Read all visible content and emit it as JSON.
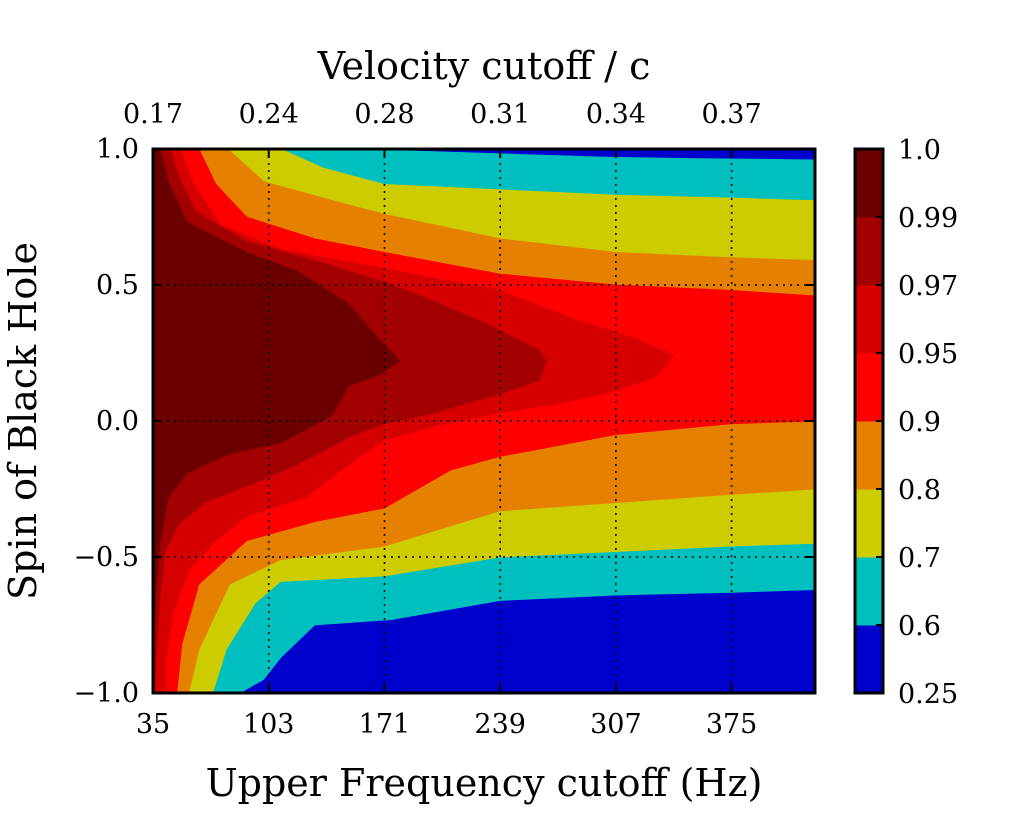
{
  "chart_data": {
    "type": "contourf",
    "title": "",
    "xlabel": "Upper Frequency cutoff (Hz)",
    "ylabel": "Spin of Black Hole",
    "x2label": "Velocity cutoff / c",
    "xlim": [
      35,
      424
    ],
    "ylim": [
      -1.0,
      1.0
    ],
    "x_ticks": [
      35,
      103,
      171,
      239,
      307,
      375
    ],
    "x_tick_labels": [
      "35",
      "103",
      "171",
      "239",
      "307",
      "375"
    ],
    "y_ticks": [
      -1.0,
      -0.5,
      0.0,
      0.5,
      1.0
    ],
    "y_tick_labels": [
      "−1.0",
      "−0.5",
      "0.0",
      "0.5",
      "1.0"
    ],
    "x2_ticks": [
      35,
      103,
      171,
      239,
      307,
      375
    ],
    "x2_tick_labels": [
      "0.17",
      "0.24",
      "0.28",
      "0.31",
      "0.34",
      "0.37"
    ],
    "grid": true,
    "grid_style": "dotted",
    "colorbar": {
      "ticks": [
        "0.25",
        "0.6",
        "0.7",
        "0.8",
        "0.9",
        "0.95",
        "0.97",
        "0.99",
        "1.0"
      ],
      "levels": [
        0.25,
        0.6,
        0.7,
        0.8,
        0.9,
        0.95,
        0.97,
        0.99,
        1.0
      ]
    },
    "level_colors": [
      "#0000cc",
      "#00bfbf",
      "#cccc00",
      "#e68000",
      "#ff0000",
      "#d60000",
      "#a30000",
      "#6b0000"
    ],
    "contours": [
      {
        "level": 0.6,
        "upper": [
          [
            35,
            1.0
          ],
          [
            144,
            1.0
          ],
          [
            200,
            0.99
          ],
          [
            250,
            0.98
          ],
          [
            300,
            0.97
          ],
          [
            350,
            0.965
          ],
          [
            424,
            0.96
          ]
        ],
        "lower": [
          [
            35,
            -1.0
          ],
          [
            86,
            -1.0
          ],
          [
            100,
            -0.95
          ],
          [
            110,
            -0.87
          ],
          [
            130,
            -0.75
          ],
          [
            175,
            -0.73
          ],
          [
            239,
            -0.66
          ],
          [
            307,
            -0.64
          ],
          [
            375,
            -0.63
          ],
          [
            424,
            -0.62
          ]
        ]
      },
      {
        "level": 0.7,
        "upper": [
          [
            35,
            1.0
          ],
          [
            110,
            1.0
          ],
          [
            135,
            0.93
          ],
          [
            171,
            0.87
          ],
          [
            239,
            0.85
          ],
          [
            307,
            0.83
          ],
          [
            375,
            0.82
          ],
          [
            424,
            0.81
          ]
        ],
        "lower": [
          [
            35,
            -1.0
          ],
          [
            70,
            -1.0
          ],
          [
            78,
            -0.84
          ],
          [
            95,
            -0.67
          ],
          [
            110,
            -0.59
          ],
          [
            171,
            -0.57
          ],
          [
            239,
            -0.5
          ],
          [
            307,
            -0.48
          ],
          [
            375,
            -0.46
          ],
          [
            424,
            -0.45
          ]
        ]
      },
      {
        "level": 0.8,
        "upper": [
          [
            35,
            1.0
          ],
          [
            79,
            1.0
          ],
          [
            100,
            0.88
          ],
          [
            135,
            0.82
          ],
          [
            171,
            0.76
          ],
          [
            239,
            0.67
          ],
          [
            307,
            0.62
          ],
          [
            375,
            0.6
          ],
          [
            424,
            0.59
          ]
        ],
        "lower": [
          [
            35,
            -1.0
          ],
          [
            56,
            -1.0
          ],
          [
            62,
            -0.84
          ],
          [
            80,
            -0.6
          ],
          [
            110,
            -0.51
          ],
          [
            171,
            -0.46
          ],
          [
            239,
            -0.33
          ],
          [
            307,
            -0.3
          ],
          [
            375,
            -0.27
          ],
          [
            424,
            -0.25
          ]
        ]
      },
      {
        "level": 0.9,
        "upper": [
          [
            35,
            1.0
          ],
          [
            62,
            1.0
          ],
          [
            72,
            0.87
          ],
          [
            90,
            0.75
          ],
          [
            130,
            0.67
          ],
          [
            171,
            0.62
          ],
          [
            239,
            0.54
          ],
          [
            307,
            0.5
          ],
          [
            375,
            0.48
          ],
          [
            424,
            0.46
          ]
        ],
        "lower": [
          [
            35,
            -1.0
          ],
          [
            49,
            -1.0
          ],
          [
            52,
            -0.82
          ],
          [
            62,
            -0.6
          ],
          [
            90,
            -0.44
          ],
          [
            130,
            -0.37
          ],
          [
            171,
            -0.32
          ],
          [
            210,
            -0.18
          ],
          [
            239,
            -0.13
          ],
          [
            307,
            -0.05
          ],
          [
            375,
            -0.01
          ],
          [
            424,
            0.0
          ]
        ]
      },
      {
        "level": 0.95,
        "upper": [
          [
            35,
            1.0
          ],
          [
            51,
            1.0
          ],
          [
            58,
            0.88
          ],
          [
            75,
            0.72
          ],
          [
            110,
            0.63
          ],
          [
            171,
            0.56
          ],
          [
            239,
            0.48
          ],
          [
            280,
            0.38
          ],
          [
            320,
            0.3
          ],
          [
            341,
            0.24
          ],
          [
            330,
            0.16
          ],
          [
            300,
            0.1
          ],
          [
            270,
            0.06
          ],
          [
            239,
            0.03
          ],
          [
            200,
            -0.02
          ],
          [
            171,
            -0.07
          ],
          [
            150,
            -0.16
          ],
          [
            125,
            -0.28
          ],
          [
            90,
            -0.35
          ],
          [
            70,
            -0.45
          ],
          [
            56,
            -0.55
          ],
          [
            47,
            -0.7
          ],
          [
            42,
            -0.9
          ],
          [
            43,
            -1.0
          ],
          [
            35,
            -1.0
          ]
        ]
      },
      {
        "level": 0.97,
        "upper": [
          [
            35,
            1.0
          ],
          [
            45,
            1.0
          ],
          [
            50,
            0.9
          ],
          [
            60,
            0.77
          ],
          [
            90,
            0.66
          ],
          [
            135,
            0.58
          ],
          [
            171,
            0.51
          ],
          [
            200,
            0.44
          ],
          [
            230,
            0.36
          ],
          [
            262,
            0.26
          ],
          [
            266,
            0.22
          ],
          [
            262,
            0.15
          ],
          [
            239,
            0.1
          ],
          [
            200,
            0.03
          ],
          [
            171,
            -0.01
          ],
          [
            150,
            -0.06
          ],
          [
            120,
            -0.16
          ],
          [
            90,
            -0.24
          ],
          [
            65,
            -0.3
          ],
          [
            50,
            -0.38
          ],
          [
            42,
            -0.48
          ],
          [
            39,
            -0.65
          ],
          [
            37,
            -0.85
          ],
          [
            36,
            -1.0
          ],
          [
            35,
            -1.0
          ]
        ]
      },
      {
        "level": 0.99,
        "upper": [
          [
            35,
            1.0
          ],
          [
            39,
            1.0
          ],
          [
            44,
            0.88
          ],
          [
            55,
            0.73
          ],
          [
            90,
            0.62
          ],
          [
            120,
            0.55
          ],
          [
            150,
            0.43
          ],
          [
            165,
            0.32
          ],
          [
            180,
            0.22
          ],
          [
            168,
            0.17
          ],
          [
            150,
            0.13
          ],
          [
            140,
            0.02
          ],
          [
            110,
            -0.08
          ],
          [
            80,
            -0.12
          ],
          [
            55,
            -0.19
          ],
          [
            44,
            -0.28
          ],
          [
            39,
            -0.45
          ],
          [
            37,
            -0.6
          ],
          [
            36,
            -0.75
          ],
          [
            35,
            -0.85
          ]
        ]
      }
    ]
  }
}
